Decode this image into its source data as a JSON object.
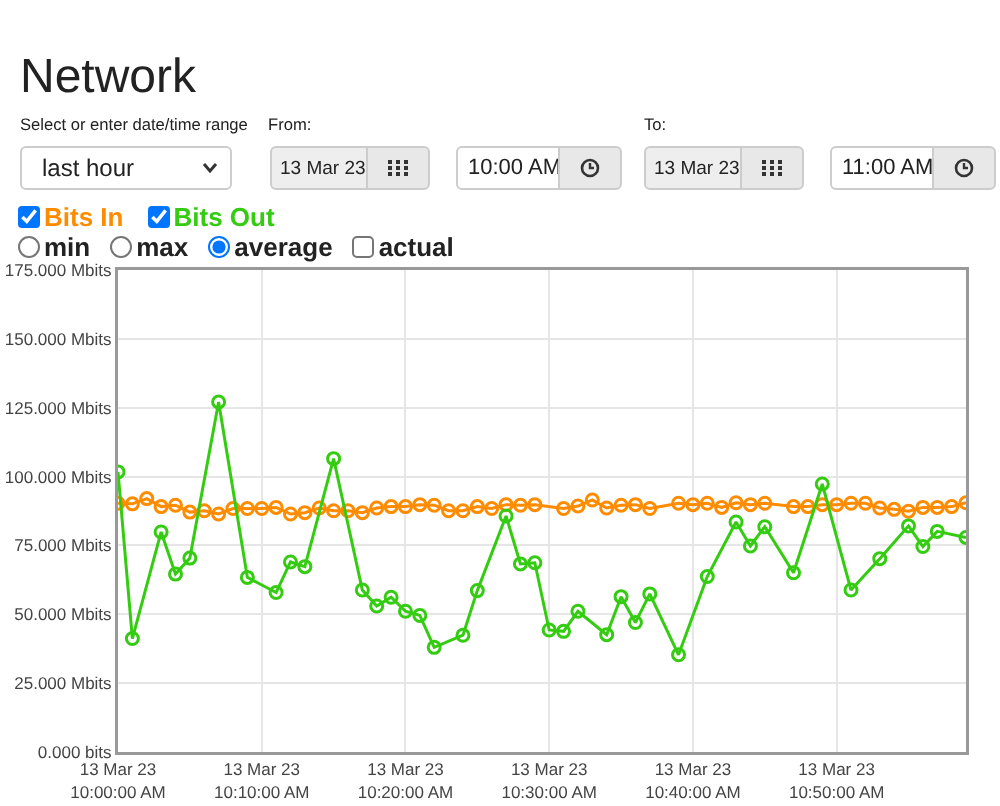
{
  "chart_data": {
    "type": "line",
    "title": "Network",
    "annotations": [
      "Select or enter date/time range",
      "last hour",
      "From:",
      "13 Mar 23",
      "10:00 AM",
      "To:",
      "13 Mar 23",
      "11:00 AM",
      "min",
      "max",
      "average",
      "actual"
    ],
    "legend": "top left",
    "marker": "circle",
    "grid": true,
    "xlim": [
      "--03-13T10:00",
      "--03-13T10:59"
    ],
    "xticks": [
      {
        "value": "--03-13T10:00",
        "label": "13 Mar 23\n10:00:00 AM"
      },
      {
        "value": "--03-13T10:10",
        "label": "13 Mar 23\n10:10:00 AM"
      },
      {
        "value": "--03-13T10:20",
        "label": "13 Mar 23\n10:20:00 AM"
      },
      {
        "value": "--03-13T10:30",
        "label": "13 Mar 23\n10:30:00 AM"
      },
      {
        "value": "--03-13T10:40",
        "label": "13 Mar 23\n10:40:00 AM"
      },
      {
        "value": "--03-13T10:50",
        "label": "13 Mar 23\n10:50:00 AM"
      }
    ],
    "ylim": [
      0,
      175
    ],
    "yticks": [
      {
        "value": 0,
        "label": "0.000 bits"
      },
      {
        "value": 25,
        "label": "25.000 Mbits"
      },
      {
        "value": 50,
        "label": "50.000 Mbits"
      },
      {
        "value": 75,
        "label": "75.000 Mbits"
      },
      {
        "value": 100,
        "label": "100.000 Mbits"
      },
      {
        "value": 125,
        "label": "125.000 Mbits"
      },
      {
        "value": 150,
        "label": "150.000 Mbits"
      },
      {
        "value": 175,
        "label": "175.000 Mbits"
      }
    ],
    "series": [
      {
        "name": "Bits In",
        "color": "#ff8c00",
        "x": [
          "--03-13T10:00",
          "--03-13T10:01",
          "--03-13T10:02",
          "--03-13T10:03",
          "--03-13T10:04",
          "--03-13T10:05",
          "--03-13T10:06",
          "--03-13T10:07",
          "--03-13T10:08",
          "--03-13T10:09",
          "--03-13T10:10",
          "--03-13T10:11",
          "--03-13T10:12",
          "--03-13T10:13",
          "--03-13T10:14",
          "--03-13T10:15",
          "--03-13T10:16",
          "--03-13T10:17",
          "--03-13T10:18",
          "--03-13T10:19",
          "--03-13T10:20",
          "--03-13T10:21",
          "--03-13T10:22",
          "--03-13T10:23",
          "--03-13T10:24",
          "--03-13T10:25",
          "--03-13T10:26",
          "--03-13T10:27",
          "--03-13T10:28",
          "--03-13T10:29",
          "--03-13T10:31",
          "--03-13T10:32",
          "--03-13T10:33",
          "--03-13T10:34",
          "--03-13T10:35",
          "--03-13T10:36",
          "--03-13T10:37",
          "--03-13T10:39",
          "--03-13T10:40",
          "--03-13T10:41",
          "--03-13T10:42",
          "--03-13T10:43",
          "--03-13T10:44",
          "--03-13T10:45",
          "--03-13T10:47",
          "--03-13T10:48",
          "--03-13T10:49",
          "--03-13T10:50",
          "--03-13T10:51",
          "--03-13T10:52",
          "--03-13T10:53",
          "--03-13T10:54",
          "--03-13T10:55",
          "--03-13T10:56",
          "--03-13T10:57",
          "--03-13T10:58",
          "--03-13T10:59"
        ],
        "values": [
          90.3,
          90.1,
          92.0,
          89.1,
          89.6,
          87.1,
          87.6,
          86.4,
          88.4,
          88.4,
          88.4,
          88.8,
          86.4,
          86.9,
          88.6,
          87.6,
          87.6,
          86.9,
          88.6,
          89.1,
          89.1,
          89.8,
          89.6,
          87.6,
          87.6,
          89.1,
          88.4,
          89.8,
          89.6,
          89.8,
          88.4,
          89.3,
          91.5,
          88.6,
          89.6,
          89.8,
          88.4,
          90.3,
          89.8,
          90.3,
          88.8,
          90.5,
          89.8,
          90.3,
          89.1,
          89.1,
          89.8,
          89.8,
          90.3,
          90.3,
          88.6,
          88.1,
          87.4,
          88.8,
          88.8,
          89.1,
          90.5
        ]
      },
      {
        "name": "Bits Out",
        "color": "#33cc11",
        "x": [
          "--03-13T10:00",
          "--03-13T10:01",
          "--03-13T10:03",
          "--03-13T10:04",
          "--03-13T10:05",
          "--03-13T10:07",
          "--03-13T10:09",
          "--03-13T10:11",
          "--03-13T10:12",
          "--03-13T10:13",
          "--03-13T10:15",
          "--03-13T10:17",
          "--03-13T10:18",
          "--03-13T10:19",
          "--03-13T10:20",
          "--03-13T10:21",
          "--03-13T10:22",
          "--03-13T10:24",
          "--03-13T10:25",
          "--03-13T10:27",
          "--03-13T10:28",
          "--03-13T10:29",
          "--03-13T10:30",
          "--03-13T10:31",
          "--03-13T10:32",
          "--03-13T10:34",
          "--03-13T10:35",
          "--03-13T10:36",
          "--03-13T10:37",
          "--03-13T10:39",
          "--03-13T10:41",
          "--03-13T10:43",
          "--03-13T10:44",
          "--03-13T10:45",
          "--03-13T10:47",
          "--03-13T10:49",
          "--03-13T10:51",
          "--03-13T10:53",
          "--03-13T10:55",
          "--03-13T10:56",
          "--03-13T10:57",
          "--03-13T10:59"
        ],
        "values": [
          101.7,
          41.2,
          79.9,
          64.6,
          70.4,
          127.1,
          63.4,
          57.9,
          69.0,
          67.3,
          106.5,
          58.8,
          53.0,
          56.2,
          51.1,
          49.6,
          38.0,
          42.4,
          58.6,
          85.7,
          68.3,
          68.7,
          44.3,
          43.8,
          51.1,
          42.6,
          56.4,
          47.0,
          57.4,
          35.3,
          63.7,
          83.5,
          74.8,
          81.8,
          65.1,
          97.3,
          58.8,
          70.2,
          82.1,
          74.6,
          80.1,
          77.9
        ]
      }
    ]
  }
}
